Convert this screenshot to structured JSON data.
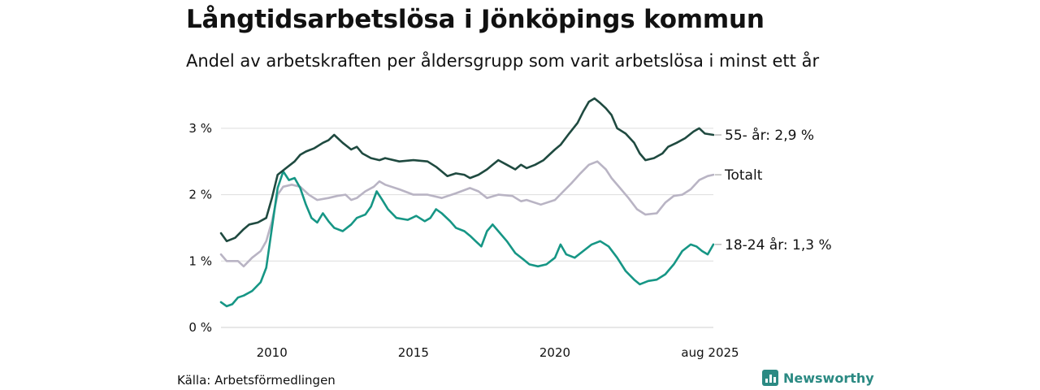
{
  "header": {
    "title": "Långtidsarbetslösa i Jönköpings kommun",
    "subtitle": "Andel av arbetskraften per åldersgrupp som varit arbetslösa i minst ett år"
  },
  "footer": {
    "source": "Källa: Arbetsförmedlingen",
    "brand": "Newsworthy"
  },
  "chart_data": {
    "type": "line",
    "y_ticks": [
      {
        "value": 0,
        "label": "0 %"
      },
      {
        "value": 1,
        "label": "1 %"
      },
      {
        "value": 2,
        "label": "2 %"
      },
      {
        "value": 3,
        "label": "3 %"
      }
    ],
    "x_ticks": [
      {
        "value": 2010.0,
        "label": "2010"
      },
      {
        "value": 2015.0,
        "label": "2015"
      },
      {
        "value": 2020.0,
        "label": "2020"
      },
      {
        "value": 2025.6,
        "label": "aug 2025"
      }
    ],
    "xlim": [
      2008.2,
      2025.6
    ],
    "ylim": [
      0,
      3.5
    ],
    "grid": true,
    "legend": "end-labels",
    "series": [
      {
        "name": "55- år",
        "label": "55- år: 2,9 %",
        "color": "#1f4a40",
        "points": [
          [
            2008.2,
            1.42
          ],
          [
            2008.4,
            1.3
          ],
          [
            2008.7,
            1.35
          ],
          [
            2009.0,
            1.48
          ],
          [
            2009.2,
            1.55
          ],
          [
            2009.5,
            1.58
          ],
          [
            2009.8,
            1.65
          ],
          [
            2010.0,
            1.95
          ],
          [
            2010.2,
            2.3
          ],
          [
            2010.5,
            2.4
          ],
          [
            2010.8,
            2.5
          ],
          [
            2011.0,
            2.6
          ],
          [
            2011.2,
            2.65
          ],
          [
            2011.5,
            2.7
          ],
          [
            2011.8,
            2.78
          ],
          [
            2012.0,
            2.82
          ],
          [
            2012.2,
            2.9
          ],
          [
            2012.5,
            2.78
          ],
          [
            2012.8,
            2.68
          ],
          [
            2013.0,
            2.72
          ],
          [
            2013.2,
            2.62
          ],
          [
            2013.5,
            2.55
          ],
          [
            2013.8,
            2.52
          ],
          [
            2014.0,
            2.55
          ],
          [
            2014.5,
            2.5
          ],
          [
            2015.0,
            2.52
          ],
          [
            2015.5,
            2.5
          ],
          [
            2015.8,
            2.42
          ],
          [
            2016.0,
            2.35
          ],
          [
            2016.2,
            2.28
          ],
          [
            2016.5,
            2.32
          ],
          [
            2016.8,
            2.3
          ],
          [
            2017.0,
            2.25
          ],
          [
            2017.3,
            2.3
          ],
          [
            2017.6,
            2.38
          ],
          [
            2017.8,
            2.45
          ],
          [
            2018.0,
            2.52
          ],
          [
            2018.3,
            2.45
          ],
          [
            2018.6,
            2.38
          ],
          [
            2018.8,
            2.45
          ],
          [
            2019.0,
            2.4
          ],
          [
            2019.3,
            2.45
          ],
          [
            2019.6,
            2.52
          ],
          [
            2019.8,
            2.6
          ],
          [
            2020.0,
            2.68
          ],
          [
            2020.2,
            2.75
          ],
          [
            2020.5,
            2.92
          ],
          [
            2020.8,
            3.08
          ],
          [
            2021.0,
            3.25
          ],
          [
            2021.2,
            3.4
          ],
          [
            2021.4,
            3.45
          ],
          [
            2021.6,
            3.38
          ],
          [
            2021.8,
            3.3
          ],
          [
            2022.0,
            3.2
          ],
          [
            2022.2,
            3.0
          ],
          [
            2022.5,
            2.92
          ],
          [
            2022.8,
            2.78
          ],
          [
            2023.0,
            2.62
          ],
          [
            2023.2,
            2.52
          ],
          [
            2023.5,
            2.55
          ],
          [
            2023.8,
            2.62
          ],
          [
            2024.0,
            2.72
          ],
          [
            2024.3,
            2.78
          ],
          [
            2024.6,
            2.85
          ],
          [
            2024.9,
            2.95
          ],
          [
            2025.1,
            3.0
          ],
          [
            2025.3,
            2.92
          ],
          [
            2025.6,
            2.9
          ]
        ]
      },
      {
        "name": "Totalt",
        "label": "Totalt",
        "color": "#b9b4c4",
        "points": [
          [
            2008.2,
            1.1
          ],
          [
            2008.4,
            1.0
          ],
          [
            2008.8,
            1.0
          ],
          [
            2009.0,
            0.92
          ],
          [
            2009.3,
            1.05
          ],
          [
            2009.6,
            1.15
          ],
          [
            2009.8,
            1.3
          ],
          [
            2010.0,
            1.6
          ],
          [
            2010.2,
            2.0
          ],
          [
            2010.4,
            2.12
          ],
          [
            2010.7,
            2.15
          ],
          [
            2011.0,
            2.12
          ],
          [
            2011.3,
            2.0
          ],
          [
            2011.6,
            1.92
          ],
          [
            2012.0,
            1.95
          ],
          [
            2012.3,
            1.98
          ],
          [
            2012.6,
            2.0
          ],
          [
            2012.8,
            1.92
          ],
          [
            2013.0,
            1.95
          ],
          [
            2013.3,
            2.05
          ],
          [
            2013.6,
            2.12
          ],
          [
            2013.8,
            2.2
          ],
          [
            2014.0,
            2.15
          ],
          [
            2014.5,
            2.08
          ],
          [
            2015.0,
            2.0
          ],
          [
            2015.5,
            2.0
          ],
          [
            2016.0,
            1.95
          ],
          [
            2016.5,
            2.02
          ],
          [
            2017.0,
            2.1
          ],
          [
            2017.3,
            2.05
          ],
          [
            2017.6,
            1.95
          ],
          [
            2018.0,
            2.0
          ],
          [
            2018.5,
            1.98
          ],
          [
            2018.8,
            1.9
          ],
          [
            2019.0,
            1.92
          ],
          [
            2019.5,
            1.85
          ],
          [
            2020.0,
            1.92
          ],
          [
            2020.3,
            2.05
          ],
          [
            2020.6,
            2.18
          ],
          [
            2020.9,
            2.32
          ],
          [
            2021.2,
            2.45
          ],
          [
            2021.5,
            2.5
          ],
          [
            2021.8,
            2.38
          ],
          [
            2022.0,
            2.25
          ],
          [
            2022.3,
            2.1
          ],
          [
            2022.6,
            1.95
          ],
          [
            2022.9,
            1.78
          ],
          [
            2023.2,
            1.7
          ],
          [
            2023.6,
            1.72
          ],
          [
            2023.9,
            1.88
          ],
          [
            2024.2,
            1.98
          ],
          [
            2024.5,
            2.0
          ],
          [
            2024.8,
            2.08
          ],
          [
            2025.1,
            2.22
          ],
          [
            2025.4,
            2.28
          ],
          [
            2025.6,
            2.3
          ]
        ]
      },
      {
        "name": "18-24 år",
        "label": "18-24 år: 1,3 %",
        "color": "#169685",
        "points": [
          [
            2008.2,
            0.38
          ],
          [
            2008.4,
            0.32
          ],
          [
            2008.6,
            0.35
          ],
          [
            2008.8,
            0.45
          ],
          [
            2009.0,
            0.48
          ],
          [
            2009.3,
            0.55
          ],
          [
            2009.6,
            0.68
          ],
          [
            2009.8,
            0.9
          ],
          [
            2010.0,
            1.5
          ],
          [
            2010.2,
            2.1
          ],
          [
            2010.4,
            2.35
          ],
          [
            2010.6,
            2.22
          ],
          [
            2010.8,
            2.25
          ],
          [
            2011.0,
            2.1
          ],
          [
            2011.2,
            1.85
          ],
          [
            2011.4,
            1.65
          ],
          [
            2011.6,
            1.58
          ],
          [
            2011.8,
            1.72
          ],
          [
            2012.0,
            1.6
          ],
          [
            2012.2,
            1.5
          ],
          [
            2012.5,
            1.45
          ],
          [
            2012.8,
            1.55
          ],
          [
            2013.0,
            1.65
          ],
          [
            2013.3,
            1.7
          ],
          [
            2013.5,
            1.82
          ],
          [
            2013.7,
            2.05
          ],
          [
            2013.9,
            1.92
          ],
          [
            2014.1,
            1.78
          ],
          [
            2014.4,
            1.65
          ],
          [
            2014.8,
            1.62
          ],
          [
            2015.1,
            1.68
          ],
          [
            2015.4,
            1.6
          ],
          [
            2015.6,
            1.65
          ],
          [
            2015.8,
            1.78
          ],
          [
            2016.0,
            1.72
          ],
          [
            2016.3,
            1.6
          ],
          [
            2016.5,
            1.5
          ],
          [
            2016.8,
            1.45
          ],
          [
            2017.0,
            1.38
          ],
          [
            2017.2,
            1.3
          ],
          [
            2017.4,
            1.22
          ],
          [
            2017.6,
            1.45
          ],
          [
            2017.8,
            1.55
          ],
          [
            2018.0,
            1.45
          ],
          [
            2018.3,
            1.3
          ],
          [
            2018.6,
            1.12
          ],
          [
            2018.9,
            1.02
          ],
          [
            2019.1,
            0.95
          ],
          [
            2019.4,
            0.92
          ],
          [
            2019.7,
            0.95
          ],
          [
            2020.0,
            1.05
          ],
          [
            2020.2,
            1.25
          ],
          [
            2020.4,
            1.1
          ],
          [
            2020.7,
            1.05
          ],
          [
            2021.0,
            1.15
          ],
          [
            2021.3,
            1.25
          ],
          [
            2021.6,
            1.3
          ],
          [
            2021.9,
            1.22
          ],
          [
            2022.2,
            1.05
          ],
          [
            2022.5,
            0.85
          ],
          [
            2022.8,
            0.72
          ],
          [
            2023.0,
            0.65
          ],
          [
            2023.3,
            0.7
          ],
          [
            2023.6,
            0.72
          ],
          [
            2023.9,
            0.8
          ],
          [
            2024.2,
            0.95
          ],
          [
            2024.5,
            1.15
          ],
          [
            2024.8,
            1.25
          ],
          [
            2025.0,
            1.22
          ],
          [
            2025.2,
            1.15
          ],
          [
            2025.4,
            1.1
          ],
          [
            2025.6,
            1.25
          ]
        ]
      }
    ]
  }
}
